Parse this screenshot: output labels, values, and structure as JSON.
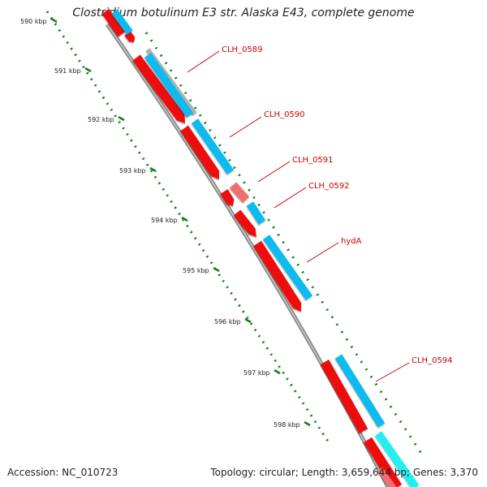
{
  "title": "Clostridium botulinum E3 str. Alaska E43, complete genome",
  "footer": {
    "accession": "Accession: NC_010723",
    "summary": "Topology: circular; Length: 3,659,644 bp; Genes: 3,370"
  },
  "ticks": [
    "590 kbp",
    "591 kbp",
    "592 kbp",
    "593 kbp",
    "594 kbp",
    "595 kbp",
    "596 kbp",
    "597 kbp",
    "598 kbp"
  ],
  "gene_labels": [
    "CLH_0589",
    "CLH_0590",
    "CLH_0591",
    "CLH_0592",
    "hydA",
    "CLH_0594"
  ],
  "colors": {
    "cds": "#ee1111",
    "cds_light": "#f07070",
    "blast": "#11bbee",
    "blast_cyan": "#22f0f0",
    "gray_band": "#b0b0b0",
    "backbone": "#888888",
    "gc_dots": "#1a7a1a",
    "label": "#cc0000"
  }
}
